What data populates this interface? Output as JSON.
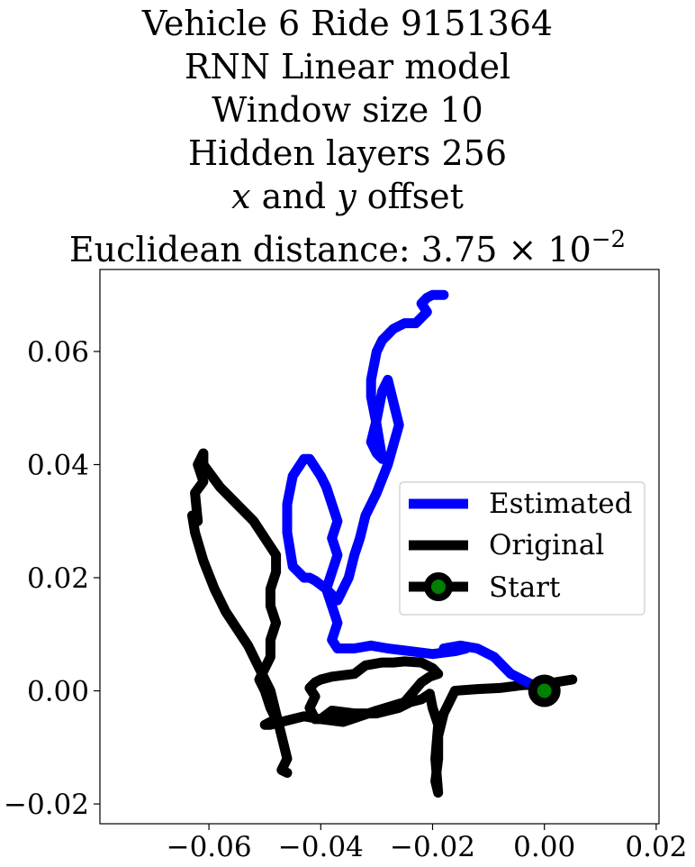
{
  "title": {
    "line1": "Vehicle 6 Ride 9151364",
    "line2": "RNN Linear model",
    "line3": "Window size 10",
    "line4": "Hidden layers 256",
    "line5_x": "x",
    "line5_and": " and ",
    "line5_y": "y",
    "line5_rest": " offset",
    "line6_prefix": "Euclidean distance: ",
    "line6_value": "3.75",
    "line6_times": " × 10",
    "line6_exp": "−2"
  },
  "chart_data": {
    "type": "line",
    "title": "Vehicle 6 Ride 9151364 RNN Linear model Window size 10 Hidden layers 256 x and y offset Euclidean distance: 3.75 × 10^-2",
    "xlabel": "",
    "ylabel": "",
    "xlim": [
      -0.0795,
      0.0205
    ],
    "ylim": [
      -0.0235,
      0.0745
    ],
    "grid": false,
    "legend_position": "center-right",
    "x_ticks": [
      -0.06,
      -0.04,
      -0.02,
      0.0,
      0.02
    ],
    "x_tick_labels": [
      "−0.06",
      "−0.04",
      "−0.02",
      "0.00",
      "0.02"
    ],
    "y_ticks": [
      -0.02,
      0.0,
      0.02,
      0.04,
      0.06
    ],
    "y_tick_labels": [
      "−0.02",
      "0.00",
      "0.02",
      "0.04",
      "0.06"
    ],
    "series": [
      {
        "name": "Estimated",
        "color": "#0000ff",
        "x": [
          0.0,
          -0.003,
          -0.006,
          -0.009,
          -0.012,
          -0.015,
          -0.018,
          -0.014,
          -0.016,
          -0.02,
          -0.024,
          -0.028,
          -0.031,
          -0.034,
          -0.037,
          -0.038,
          -0.037,
          -0.038,
          -0.039,
          -0.038,
          -0.037,
          -0.038,
          -0.037,
          -0.038,
          -0.039,
          -0.04,
          -0.042,
          -0.043,
          -0.045,
          -0.046,
          -0.046,
          -0.045,
          -0.044,
          -0.043,
          -0.042,
          -0.041,
          -0.039,
          -0.037,
          -0.035,
          -0.034,
          -0.033,
          -0.032,
          -0.03,
          -0.028,
          -0.026,
          -0.027,
          -0.028,
          -0.029,
          -0.03,
          -0.031,
          -0.03,
          -0.029,
          -0.03,
          -0.031,
          -0.031,
          -0.03,
          -0.029,
          -0.028,
          -0.027,
          -0.025,
          -0.023,
          -0.022,
          -0.021,
          -0.022,
          -0.021,
          -0.02,
          -0.018
        ],
        "y": [
          0.0,
          0.0015,
          0.003,
          0.006,
          0.0075,
          0.008,
          0.0075,
          0.0075,
          0.007,
          0.0065,
          0.007,
          0.0075,
          0.008,
          0.0075,
          0.0075,
          0.009,
          0.012,
          0.015,
          0.018,
          0.021,
          0.024,
          0.027,
          0.03,
          0.033,
          0.036,
          0.038,
          0.041,
          0.041,
          0.038,
          0.033,
          0.028,
          0.022,
          0.021,
          0.02,
          0.02,
          0.0195,
          0.018,
          0.016,
          0.02,
          0.024,
          0.027,
          0.031,
          0.035,
          0.04,
          0.047,
          0.051,
          0.055,
          0.053,
          0.048,
          0.044,
          0.042,
          0.041,
          0.047,
          0.052,
          0.055,
          0.06,
          0.062,
          0.063,
          0.064,
          0.065,
          0.065,
          0.066,
          0.067,
          0.0685,
          0.0695,
          0.07,
          0.07
        ]
      },
      {
        "name": "Original",
        "color": "#000000",
        "x": [
          0.005,
          0.0,
          -0.004,
          -0.008,
          -0.012,
          -0.016,
          -0.018,
          -0.019,
          -0.019,
          -0.0195,
          -0.019,
          -0.0195,
          -0.019,
          -0.02,
          -0.0205,
          -0.022,
          -0.024,
          -0.026,
          -0.03,
          -0.034,
          -0.038,
          -0.04,
          -0.041,
          -0.042,
          -0.041,
          -0.042,
          -0.041,
          -0.04,
          -0.038,
          -0.034,
          -0.032,
          -0.029,
          -0.027,
          -0.025,
          -0.022,
          -0.02,
          -0.019,
          -0.0205,
          -0.022,
          -0.025,
          -0.03,
          -0.036,
          -0.04,
          -0.043,
          -0.045,
          -0.047,
          -0.049,
          -0.05,
          -0.049,
          -0.048,
          -0.049,
          -0.05,
          -0.051,
          -0.05,
          -0.049,
          -0.049,
          -0.048,
          -0.049,
          -0.049,
          -0.048,
          -0.048,
          -0.05,
          -0.052,
          -0.055,
          -0.058,
          -0.061,
          -0.061,
          -0.062,
          -0.061,
          -0.0625,
          -0.062,
          -0.063,
          -0.0625,
          -0.061,
          -0.059,
          -0.057,
          -0.055,
          -0.053,
          -0.051,
          -0.049,
          -0.048,
          -0.047,
          -0.046,
          -0.047,
          -0.046
        ],
        "y": [
          0.002,
          0.0012,
          0.001,
          0.0005,
          0.0003,
          0.0,
          -0.004,
          -0.008,
          -0.012,
          -0.016,
          -0.018,
          -0.012,
          -0.006,
          -0.003,
          -0.0005,
          -0.0015,
          -0.002,
          -0.003,
          -0.004,
          -0.004,
          -0.0035,
          -0.005,
          -0.005,
          -0.003,
          -0.001,
          0.0005,
          0.0015,
          0.002,
          0.0025,
          0.003,
          0.0045,
          0.005,
          0.005,
          0.0052,
          0.005,
          0.004,
          0.003,
          0.0025,
          0.0015,
          -0.002,
          -0.0035,
          -0.0055,
          -0.005,
          -0.0045,
          -0.005,
          -0.0055,
          -0.006,
          -0.006,
          -0.0055,
          -0.005,
          -0.003,
          0.0,
          0.002,
          0.004,
          0.006,
          0.009,
          0.012,
          0.015,
          0.018,
          0.021,
          0.024,
          0.027,
          0.03,
          0.033,
          0.036,
          0.04,
          0.042,
          0.04,
          0.037,
          0.035,
          0.03,
          0.031,
          0.028,
          0.023,
          0.018,
          0.014,
          0.011,
          0.008,
          0.004,
          0.0,
          -0.004,
          -0.008,
          -0.012,
          -0.014,
          -0.0145
        ]
      }
    ],
    "start_point": {
      "name": "Start",
      "x": 0.0,
      "y": 0.0,
      "edge_color": "#000000",
      "face_color": "#008000"
    },
    "legend": [
      {
        "label": "Estimated",
        "color": "#0000ff",
        "marker": "line"
      },
      {
        "label": "Original",
        "color": "#000000",
        "marker": "line"
      },
      {
        "label": "Start",
        "color": "#000000",
        "marker": "circle",
        "face_color": "#008000"
      }
    ]
  }
}
